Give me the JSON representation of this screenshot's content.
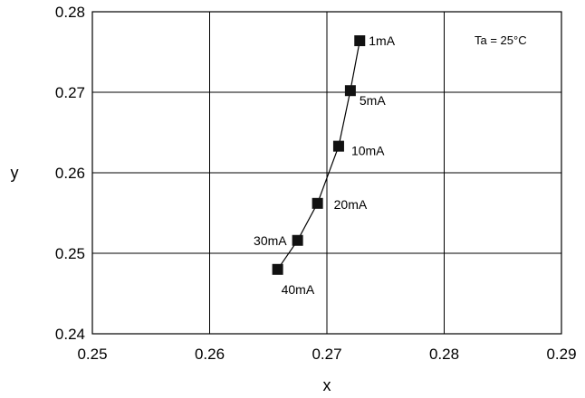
{
  "chart_data": {
    "type": "line",
    "xlabel": "x",
    "ylabel": "y",
    "xlim": [
      0.25,
      0.29
    ],
    "ylim": [
      0.24,
      0.28
    ],
    "x_ticks": [
      "0.25",
      "0.26",
      "0.27",
      "0.28",
      "0.29"
    ],
    "y_ticks": [
      "0.24",
      "0.25",
      "0.26",
      "0.27",
      "0.28"
    ],
    "x_tick_values": [
      0.25,
      0.26,
      0.27,
      0.28,
      0.29
    ],
    "y_tick_values": [
      0.24,
      0.25,
      0.26,
      0.27,
      0.28
    ],
    "grid": true,
    "annotation": "Ta = 25°C",
    "series": [
      {
        "marker": "square",
        "points": [
          {
            "x": 0.2728,
            "y": 0.2764,
            "label": "1mA"
          },
          {
            "x": 0.272,
            "y": 0.2702,
            "label": "5mA"
          },
          {
            "x": 0.271,
            "y": 0.2633,
            "label": "10mA"
          },
          {
            "x": 0.2692,
            "y": 0.2562,
            "label": "20mA"
          },
          {
            "x": 0.2675,
            "y": 0.2516,
            "label": "30mA"
          },
          {
            "x": 0.2658,
            "y": 0.248,
            "label": "40mA"
          }
        ]
      }
    ]
  }
}
